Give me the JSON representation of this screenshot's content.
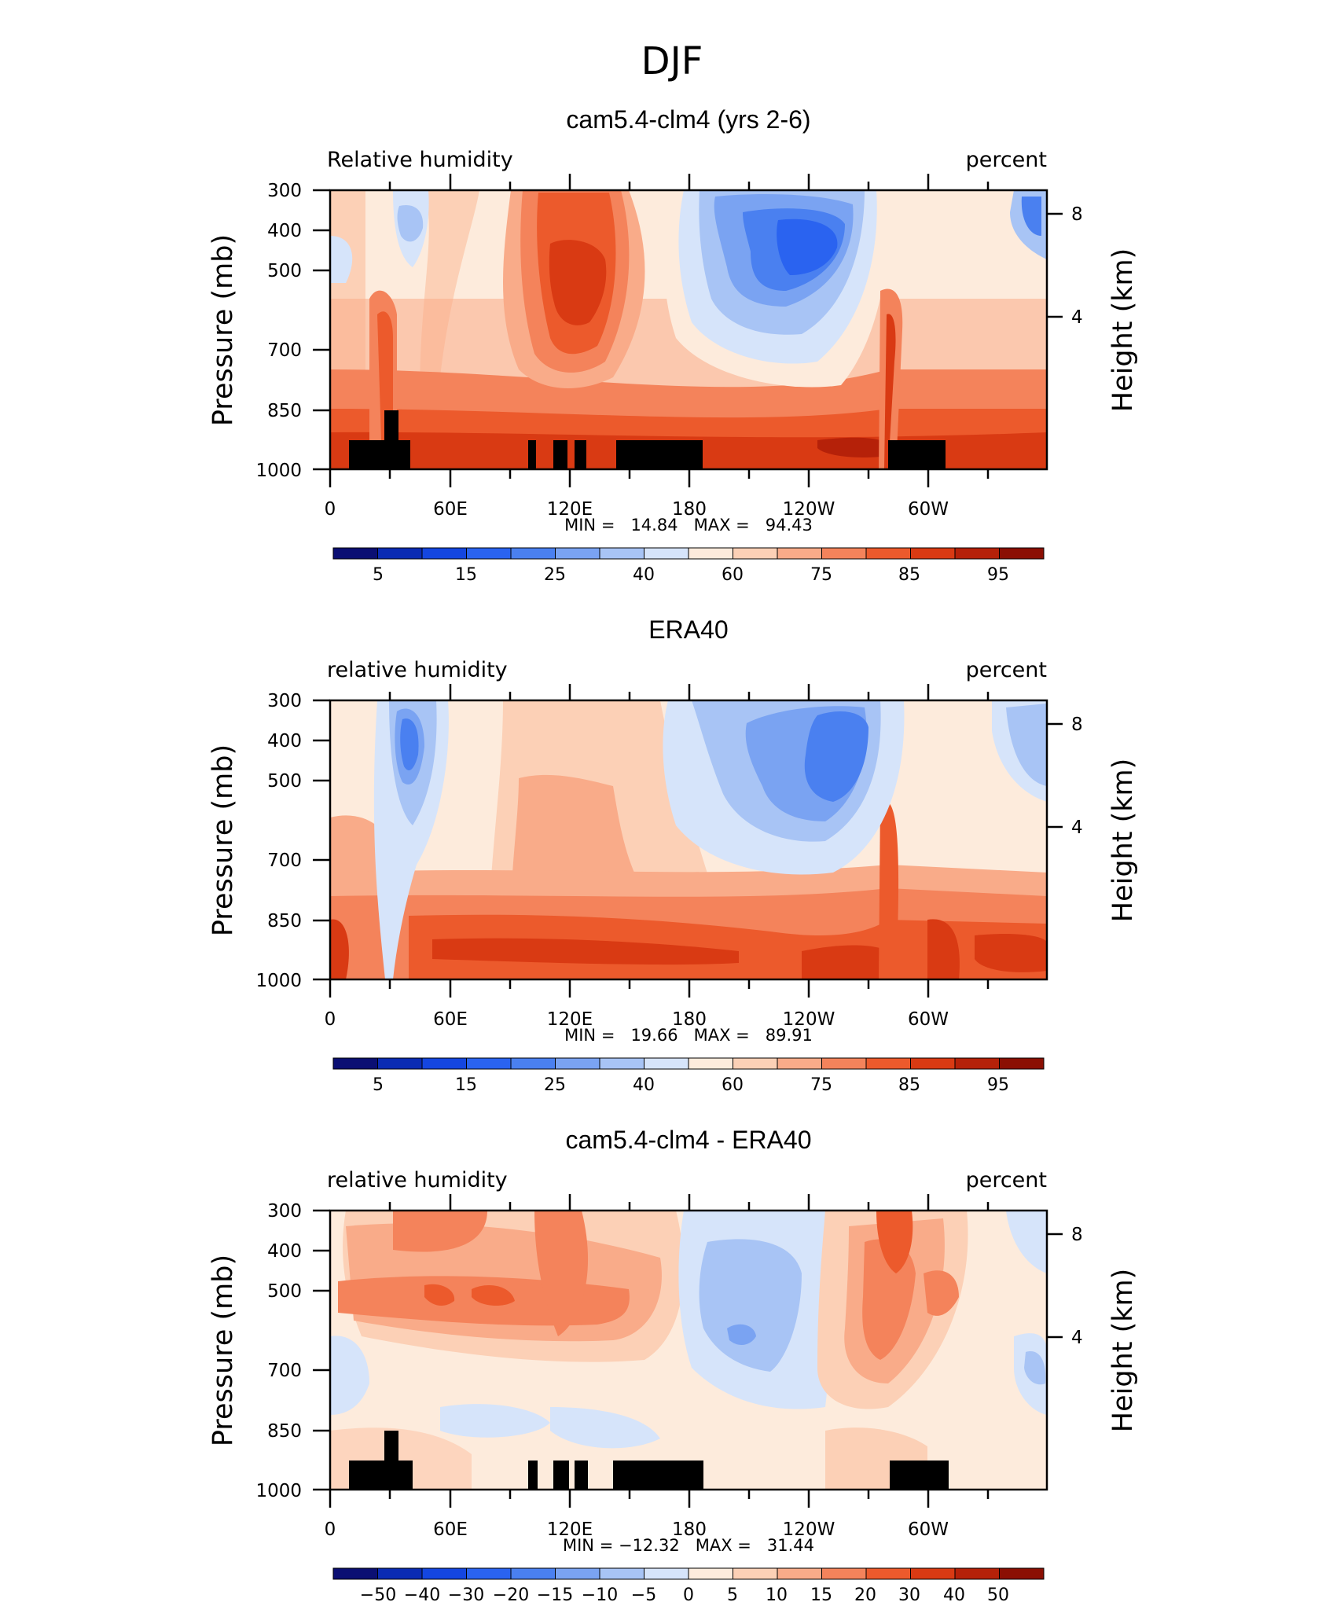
{
  "figure_title": "DJF",
  "chart_data": [
    {
      "type": "heatmap",
      "title": "cam5.4-clm4 (yrs 2-6)",
      "left_label": "Relative humidity",
      "right_label": "percent",
      "xlabel": "",
      "ylabel": "Pressure (mb)",
      "ylabel_right": "Height (km)",
      "x_ticks": [
        "0",
        "60E",
        "120E",
        "180",
        "120W",
        "60W"
      ],
      "y_ticks": [
        "300",
        "400",
        "500",
        "700",
        "850",
        "1000"
      ],
      "y_ticks_right": [
        "8",
        "4"
      ],
      "stats": "MIN =   14.84   MAX =   94.43",
      "min": 14.84,
      "max": 94.43,
      "colorbar_labels": [
        "5",
        "15",
        "25",
        "40",
        "60",
        "75",
        "85",
        "95"
      ],
      "topography": true
    },
    {
      "type": "heatmap",
      "title": "ERA40",
      "left_label": "relative humidity",
      "right_label": "percent",
      "xlabel": "",
      "ylabel": "Pressure (mb)",
      "ylabel_right": "Height (km)",
      "x_ticks": [
        "0",
        "60E",
        "120E",
        "180",
        "120W",
        "60W"
      ],
      "y_ticks": [
        "300",
        "400",
        "500",
        "700",
        "850",
        "1000"
      ],
      "y_ticks_right": [
        "8",
        "4"
      ],
      "stats": "MIN =   19.66   MAX =   89.91",
      "min": 19.66,
      "max": 89.91,
      "colorbar_labels": [
        "5",
        "15",
        "25",
        "40",
        "60",
        "75",
        "85",
        "95"
      ],
      "topography": false
    },
    {
      "type": "heatmap",
      "title": "cam5.4-clm4 - ERA40",
      "left_label": "relative humidity",
      "right_label": "percent",
      "xlabel": "",
      "ylabel": "Pressure (mb)",
      "ylabel_right": "Height (km)",
      "x_ticks": [
        "0",
        "60E",
        "120E",
        "180",
        "120W",
        "60W"
      ],
      "y_ticks": [
        "300",
        "400",
        "500",
        "700",
        "850",
        "1000"
      ],
      "y_ticks_right": [
        "8",
        "4"
      ],
      "stats": "MIN = −12.32   MAX =   31.44",
      "min": -12.32,
      "max": 31.44,
      "colorbar_labels": [
        "−50",
        "−40",
        "−30",
        "−20",
        "−15",
        "−10",
        "−5",
        "0",
        "5",
        "10",
        "15",
        "20",
        "30",
        "40",
        "50"
      ],
      "topography": true
    }
  ],
  "colors": {
    "colorbar": [
      "#0b0f73",
      "#0a2bb3",
      "#1446e0",
      "#2a63f0",
      "#4a80f0",
      "#7aa3f2",
      "#a8c4f5",
      "#d6e4fa",
      "#fdebdc",
      "#fcd0b6",
      "#f9ab89",
      "#f4835b",
      "#ec5a2c",
      "#d93a13",
      "#b52109",
      "#8b0f03"
    ],
    "topography": "#000000",
    "frame": "#000000"
  }
}
